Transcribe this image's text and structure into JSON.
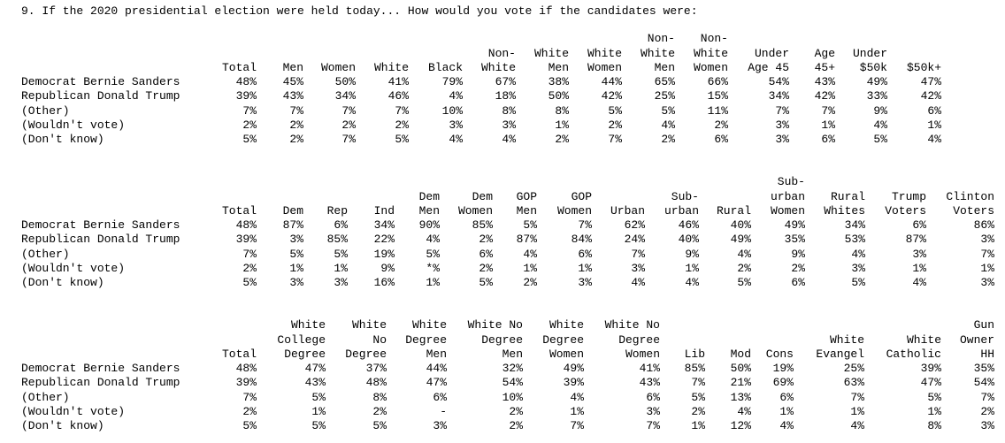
{
  "title": "9. If the 2020 presidential election were held today... How would you vote if the candidates were:",
  "tables": [
    {
      "columns": [
        [
          "Total"
        ],
        [
          "Men"
        ],
        [
          "Women"
        ],
        [
          "White"
        ],
        [
          "Black"
        ],
        [
          "Non-",
          "White"
        ],
        [
          "White",
          "Men"
        ],
        [
          "White",
          "Women"
        ],
        [
          "Non-",
          "White",
          "Men"
        ],
        [
          "Non-",
          "White",
          "Women"
        ],
        [
          "Under",
          "Age 45"
        ],
        [
          "Age",
          "45+"
        ],
        [
          "Under",
          "$50k"
        ],
        [
          "$50k+"
        ]
      ],
      "rows": [
        {
          "label": "Democrat Bernie Sanders",
          "cells": [
            "48%",
            "45%",
            "50%",
            "41%",
            "79%",
            "67%",
            "38%",
            "44%",
            "65%",
            "66%",
            "54%",
            "43%",
            "49%",
            "47%"
          ]
        },
        {
          "label": "Republican Donald Trump",
          "cells": [
            "39%",
            "43%",
            "34%",
            "46%",
            "4%",
            "18%",
            "50%",
            "42%",
            "25%",
            "15%",
            "34%",
            "42%",
            "33%",
            "42%"
          ]
        },
        {
          "label": "(Other)",
          "cells": [
            "7%",
            "7%",
            "7%",
            "7%",
            "10%",
            "8%",
            "8%",
            "5%",
            "5%",
            "11%",
            "7%",
            "7%",
            "9%",
            "6%"
          ]
        },
        {
          "label": "(Wouldn't vote)",
          "cells": [
            "2%",
            "2%",
            "2%",
            "2%",
            "3%",
            "3%",
            "1%",
            "2%",
            "4%",
            "2%",
            "3%",
            "1%",
            "4%",
            "1%"
          ]
        },
        {
          "label": "(Don't know)",
          "cells": [
            "5%",
            "2%",
            "7%",
            "5%",
            "4%",
            "4%",
            "2%",
            "7%",
            "2%",
            "6%",
            "3%",
            "6%",
            "5%",
            "4%"
          ]
        }
      ]
    },
    {
      "columns": [
        [
          "Total"
        ],
        [
          "Dem"
        ],
        [
          "Rep"
        ],
        [
          "Ind"
        ],
        [
          "Dem",
          "Men"
        ],
        [
          "Dem",
          "Women"
        ],
        [
          "GOP",
          "Men"
        ],
        [
          "GOP",
          "Women"
        ],
        [
          "Urban"
        ],
        [
          "Sub-",
          "urban"
        ],
        [
          "Rural"
        ],
        [
          "Sub-",
          "urban",
          "Women"
        ],
        [
          "Rural",
          "Whites"
        ],
        [
          "Trump",
          "Voters"
        ],
        [
          "Clinton",
          "Voters"
        ]
      ],
      "rows": [
        {
          "label": "Democrat Bernie Sanders",
          "cells": [
            "48%",
            "87%",
            "6%",
            "34%",
            "90%",
            "85%",
            "5%",
            "7%",
            "62%",
            "46%",
            "40%",
            "49%",
            "34%",
            "6%",
            "86%"
          ]
        },
        {
          "label": "Republican Donald Trump",
          "cells": [
            "39%",
            "3%",
            "85%",
            "22%",
            "4%",
            "2%",
            "87%",
            "84%",
            "24%",
            "40%",
            "49%",
            "35%",
            "53%",
            "87%",
            "3%"
          ]
        },
        {
          "label": "(Other)",
          "cells": [
            "7%",
            "5%",
            "5%",
            "19%",
            "5%",
            "6%",
            "4%",
            "6%",
            "7%",
            "9%",
            "4%",
            "9%",
            "4%",
            "3%",
            "7%"
          ]
        },
        {
          "label": "(Wouldn't vote)",
          "cells": [
            "2%",
            "1%",
            "1%",
            "9%",
            "*%",
            "2%",
            "1%",
            "1%",
            "3%",
            "1%",
            "2%",
            "2%",
            "3%",
            "1%",
            "1%"
          ]
        },
        {
          "label": "(Don't know)",
          "cells": [
            "5%",
            "3%",
            "3%",
            "16%",
            "1%",
            "5%",
            "2%",
            "3%",
            "4%",
            "4%",
            "5%",
            "6%",
            "5%",
            "4%",
            "3%"
          ]
        }
      ]
    },
    {
      "columns": [
        [
          "Total"
        ],
        [
          "White",
          "College",
          "Degree"
        ],
        [
          "White",
          "No",
          "Degree"
        ],
        [
          "White",
          "Degree",
          "Men"
        ],
        [
          "White No",
          "Degree",
          "Men"
        ],
        [
          "White",
          "Degree",
          "Women"
        ],
        [
          "White No",
          "Degree",
          "Women"
        ],
        [
          "Lib"
        ],
        [
          "Mod"
        ],
        [
          "Cons"
        ],
        [
          "White",
          "Evangel"
        ],
        [
          "White",
          "Catholic"
        ],
        [
          "Gun",
          "Owner",
          "HH"
        ]
      ],
      "rows": [
        {
          "label": "Democrat Bernie Sanders",
          "cells": [
            "48%",
            "47%",
            "37%",
            "44%",
            "32%",
            "49%",
            "41%",
            "85%",
            "50%",
            "19%",
            "25%",
            "39%",
            "35%"
          ]
        },
        {
          "label": "Republican Donald Trump",
          "cells": [
            "39%",
            "43%",
            "48%",
            "47%",
            "54%",
            "39%",
            "43%",
            "7%",
            "21%",
            "69%",
            "63%",
            "47%",
            "54%"
          ]
        },
        {
          "label": "(Other)",
          "cells": [
            "7%",
            "5%",
            "8%",
            "6%",
            "10%",
            "4%",
            "6%",
            "5%",
            "13%",
            "6%",
            "7%",
            "5%",
            "7%"
          ]
        },
        {
          "label": "(Wouldn't vote)",
          "cells": [
            "2%",
            "1%",
            "2%",
            "-",
            "2%",
            "1%",
            "3%",
            "2%",
            "4%",
            "1%",
            "1%",
            "1%",
            "2%"
          ]
        },
        {
          "label": "(Don't know)",
          "cells": [
            "5%",
            "5%",
            "5%",
            "3%",
            "2%",
            "7%",
            "7%",
            "1%",
            "12%",
            "4%",
            "4%",
            "8%",
            "3%"
          ]
        }
      ]
    }
  ]
}
